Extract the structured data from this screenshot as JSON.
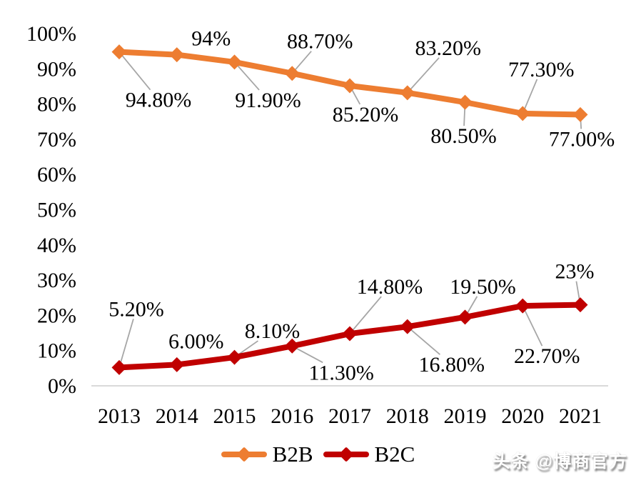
{
  "watermark": {
    "text": "头条 @博商官方"
  },
  "chart_data": {
    "type": "line",
    "title": "",
    "xlabel": "",
    "ylabel": "",
    "categories": [
      "2013",
      "2014",
      "2015",
      "2016",
      "2017",
      "2018",
      "2019",
      "2020",
      "2021"
    ],
    "ylim": [
      0,
      100
    ],
    "ytick_step": 10,
    "ytick_labels": [
      "0%",
      "10%",
      "20%",
      "30%",
      "40%",
      "50%",
      "60%",
      "70%",
      "80%",
      "90%",
      "100%"
    ],
    "grid": false,
    "legend_position": "bottom",
    "colors": {
      "axis_line": "#d9d9d9",
      "leader_line": "#a6a6a6",
      "text": "#000000"
    },
    "series": [
      {
        "name": "B2B",
        "color": "#ED7D31",
        "values": [
          94.8,
          94,
          91.9,
          88.7,
          85.2,
          83.2,
          80.5,
          77.3,
          77.0
        ],
        "labels": [
          "94.80%",
          "94%",
          "91.90%",
          "88.70%",
          "85.20%",
          "83.20%",
          "80.50%",
          "77.30%",
          "77.00%"
        ],
        "label_offsets": [
          [
            55,
            67
          ],
          [
            48,
            -23
          ],
          [
            47,
            53
          ],
          [
            39,
            -45
          ],
          [
            22,
            40
          ],
          [
            57,
            -63
          ],
          [
            -2,
            47
          ],
          [
            26,
            -62
          ],
          [
            2,
            34
          ]
        ],
        "label_leaders": [
          true,
          false,
          true,
          true,
          true,
          true,
          true,
          true,
          true
        ]
      },
      {
        "name": "B2C",
        "color": "#C00000",
        "values": [
          5.2,
          6.0,
          8.1,
          11.3,
          14.8,
          16.8,
          19.5,
          22.7,
          23
        ],
        "labels": [
          "5.20%",
          "6.00%",
          "8.10%",
          "11.30%",
          "14.80%",
          "16.80%",
          "19.50%",
          "22.70%",
          "23%"
        ],
        "label_offsets": [
          [
            24,
            -82
          ],
          [
            27,
            -33
          ],
          [
            53,
            -37
          ],
          [
            69,
            37
          ],
          [
            56,
            -66
          ],
          [
            62,
            53
          ],
          [
            25,
            -43
          ],
          [
            34,
            70
          ],
          [
            -8,
            -47
          ]
        ],
        "label_leaders": [
          true,
          false,
          true,
          true,
          true,
          true,
          true,
          true,
          true
        ]
      }
    ]
  }
}
